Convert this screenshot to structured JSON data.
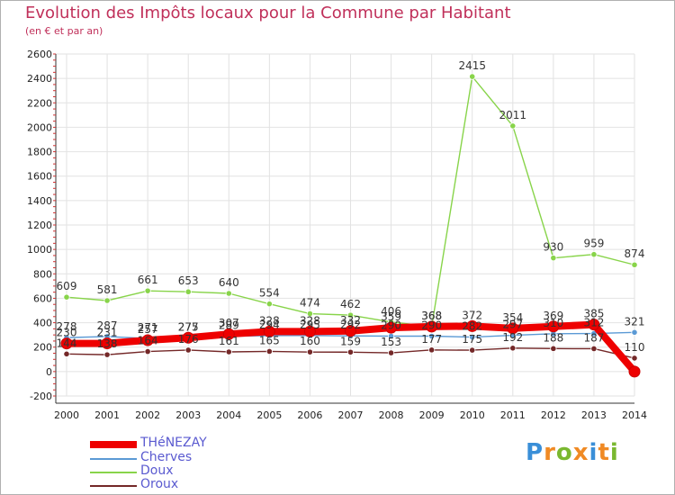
{
  "header": {
    "title": "Evolution des Impôts locaux pour la Commune par Habitant",
    "subtitle": "(en € et par an)"
  },
  "logo": {
    "text": "Proxiti",
    "colors": [
      "#3a8fd8",
      "#f08a24",
      "#7ab830",
      "#f08a24",
      "#3a8fd8",
      "#f08a24",
      "#7ab830"
    ]
  },
  "chart_data": {
    "type": "line",
    "title": "Evolution des Impôts locaux pour la Commune par Habitant",
    "subtitle": "(en € et par an)",
    "xlabel": "",
    "ylabel": "",
    "x": [
      "2000",
      "2001",
      "2002",
      "2003",
      "2004",
      "2005",
      "2006",
      "2007",
      "2008",
      "2009",
      "2010",
      "2011",
      "2012",
      "2013",
      "2014"
    ],
    "ylim": [
      -200,
      2600
    ],
    "yticks": [
      "-200",
      "0",
      "200",
      "400",
      "600",
      "800",
      "1000",
      "1200",
      "1400",
      "1600",
      "1800",
      "2000",
      "2200",
      "2400",
      "2600"
    ],
    "grid": true,
    "legend_position": "bottom-left",
    "series": [
      {
        "name": "THéNEZAY",
        "color": "#ee0000",
        "values": [
          230,
          231,
          257,
          277,
          307,
          328,
          328,
          332,
          359,
          368,
          372,
          354,
          369,
          385,
          0
        ],
        "labels": [
          "230",
          "231",
          "257",
          "277",
          "307",
          "328",
          "328",
          "332",
          "359",
          "368",
          "372",
          "354",
          "369",
          "385",
          ""
        ]
      },
      {
        "name": "Cherves",
        "color": "#5b9ad5",
        "values": [
          278,
          287,
          271,
          275,
          289,
          294,
          295,
          292,
          290,
          290,
          282,
          297,
          310,
          312,
          321
        ],
        "labels": [
          "278",
          "287",
          "271",
          "275",
          "289",
          "294",
          "295",
          "292",
          "290",
          "290",
          "282",
          "297",
          "310",
          "312",
          "321"
        ]
      },
      {
        "name": "Doux",
        "color": "#88d44a",
        "values": [
          609,
          581,
          661,
          653,
          640,
          554,
          474,
          462,
          406,
          368,
          2415,
          2011,
          930,
          959,
          874
        ],
        "labels": [
          "609",
          "581",
          "661",
          "653",
          "640",
          "554",
          "474",
          "462",
          "406",
          "368",
          "2415",
          "2011",
          "930",
          "959",
          "874"
        ]
      },
      {
        "name": "Oroux",
        "color": "#742828",
        "values": [
          144,
          138,
          164,
          176,
          161,
          165,
          160,
          159,
          153,
          177,
          175,
          192,
          188,
          187,
          110
        ],
        "labels": [
          "144",
          "138",
          "164",
          "176",
          "161",
          "165",
          "160",
          "159",
          "153",
          "177",
          "175",
          "192",
          "188",
          "187",
          "110"
        ]
      }
    ]
  }
}
